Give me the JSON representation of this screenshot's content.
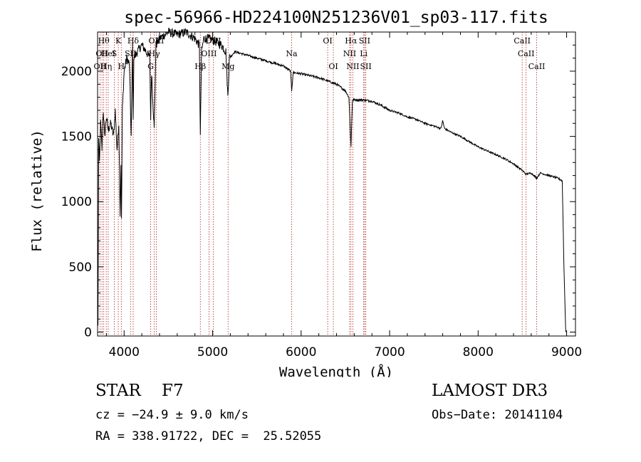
{
  "chart_data": {
    "type": "line",
    "title": "spec-56966-HD224100N251236V01_sp03-117.fits",
    "xlabel": "Wavelength (Å)",
    "ylabel": "Flux (relative)",
    "xlim": [
      3700,
      9100
    ],
    "ylim": [
      -30,
      2300
    ],
    "xticks": [
      4000,
      5000,
      6000,
      7000,
      8000,
      9000
    ],
    "yticks": [
      0,
      500,
      1000,
      1500,
      2000
    ],
    "grid": false,
    "series": [
      {
        "name": "flux",
        "x": [
          3700,
          3705,
          3712,
          3722,
          3735,
          3750,
          3765,
          3780,
          3800,
          3820,
          3850,
          3880,
          3900,
          3920,
          3940,
          3955,
          3965,
          3970,
          3980,
          4000,
          4030,
          4060,
          4080,
          4095,
          4102,
          4110,
          4150,
          4200,
          4250,
          4290,
          4300,
          4310,
          4340,
          4360,
          4400,
          4500,
          4600,
          4700,
          4800,
          4850,
          4861,
          4875,
          4900,
          4950,
          5000,
          5100,
          5150,
          5172,
          5190,
          5250,
          5400,
          5600,
          5800,
          5880,
          5893,
          5910,
          6000,
          6200,
          6400,
          6500,
          6540,
          6563,
          6580,
          6700,
          6800,
          6900,
          7000,
          7100,
          7200,
          7300,
          7400,
          7500,
          7580,
          7600,
          7620,
          7700,
          7800,
          7900,
          8000,
          8100,
          8200,
          8300,
          8400,
          8498,
          8542,
          8600,
          8662,
          8700,
          8800,
          8900,
          8950,
          8970,
          8990
        ],
        "y": [
          600,
          50,
          1500,
          1300,
          1600,
          1400,
          1700,
          1500,
          1650,
          1550,
          1600,
          1500,
          1700,
          1400,
          1600,
          900,
          1300,
          850,
          1700,
          2000,
          2100,
          2050,
          1500,
          2200,
          1600,
          2100,
          2150,
          2200,
          2150,
          2100,
          1650,
          2000,
          1550,
          2200,
          2250,
          2300,
          2280,
          2300,
          2250,
          2200,
          1500,
          2150,
          2250,
          2250,
          2240,
          2200,
          2150,
          1800,
          2100,
          2150,
          2120,
          2080,
          2040,
          2000,
          1850,
          1990,
          1980,
          1950,
          1900,
          1850,
          1800,
          1420,
          1780,
          1780,
          1770,
          1740,
          1700,
          1680,
          1650,
          1630,
          1600,
          1580,
          1560,
          1620,
          1560,
          1530,
          1500,
          1460,
          1420,
          1390,
          1360,
          1330,
          1290,
          1240,
          1210,
          1220,
          1180,
          1220,
          1200,
          1180,
          1160,
          500,
          0
        ]
      }
    ],
    "lines": [
      {
        "w": 3727,
        "label": "OII",
        "row": 2
      },
      {
        "w": 3750,
        "label": "OII",
        "row": 1
      },
      {
        "w": 3770,
        "label": "Hθ",
        "row": 0
      },
      {
        "w": 3798,
        "label": "Hη",
        "row": 2
      },
      {
        "w": 3820,
        "label": "HeI",
        "row": 1
      },
      {
        "w": 3889,
        "label": "S",
        "row": 1
      },
      {
        "w": 3934,
        "label": "K",
        "row": 0
      },
      {
        "w": 3968,
        "label": "H",
        "row": 2
      },
      {
        "w": 4102,
        "label": "Hδ",
        "row": 0
      },
      {
        "w": 4072,
        "label": "SII",
        "row": 1
      },
      {
        "w": 4300,
        "label": "G",
        "row": 2
      },
      {
        "w": 4340,
        "label": "Hγ",
        "row": 1
      },
      {
        "w": 4363,
        "label": "OIII",
        "row": 0
      },
      {
        "w": 4861,
        "label": "Hβ",
        "row": 2
      },
      {
        "w": 4959,
        "label": "OIII",
        "row": 1
      },
      {
        "w": 5007,
        "label": "OIII",
        "row": 0
      },
      {
        "w": 5175,
        "label": "Mg",
        "row": 2
      },
      {
        "w": 5893,
        "label": "Na",
        "row": 1
      },
      {
        "w": 6300,
        "label": "OI",
        "row": 0
      },
      {
        "w": 6364,
        "label": "OI",
        "row": 2
      },
      {
        "w": 6548,
        "label": "NII",
        "row": 1
      },
      {
        "w": 6563,
        "label": "Hα",
        "row": 0
      },
      {
        "w": 6584,
        "label": "NII",
        "row": 2
      },
      {
        "w": 6707,
        "label": "Li",
        "row": 1
      },
      {
        "w": 6717,
        "label": "SII",
        "row": 0
      },
      {
        "w": 6731,
        "label": "SII",
        "row": 2
      },
      {
        "w": 8498,
        "label": "CaII",
        "row": 0
      },
      {
        "w": 8542,
        "label": "CaII",
        "row": 1
      },
      {
        "w": 8662,
        "label": "CaII",
        "row": 2
      }
    ]
  },
  "footer": {
    "class_line": "STAR    F7",
    "survey": "LAMOST DR3",
    "cz": "cz = −24.9 ± 9.0 km/s",
    "obs_date": "Obs−Date: 20141104",
    "radec": "RA = 338.91722, DEC =  25.52055"
  }
}
